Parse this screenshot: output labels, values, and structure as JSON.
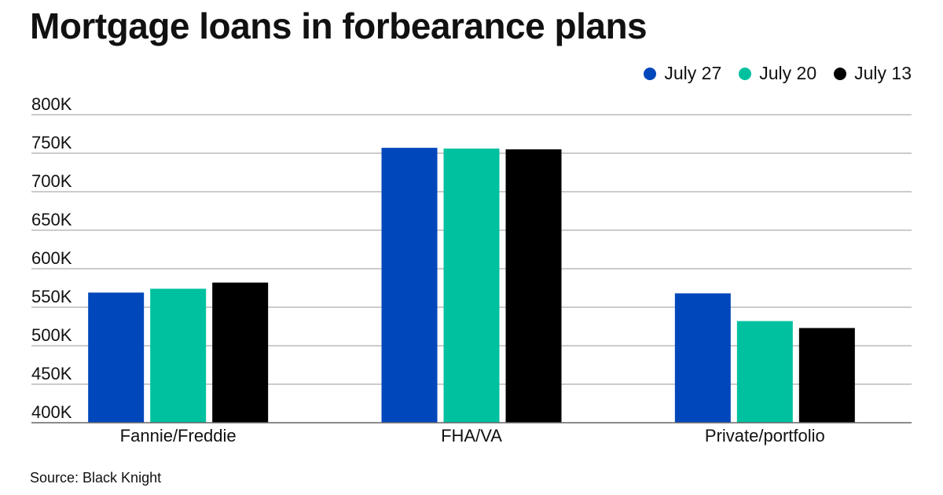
{
  "chart_data": {
    "type": "bar",
    "title": "Mortgage loans in forbearance plans",
    "categories": [
      "Fannie/Freddie",
      "FHA/VA",
      "Private/portfolio"
    ],
    "series": [
      {
        "name": "July 27",
        "color": "#0047BB",
        "values": [
          569000,
          757000,
          568000
        ]
      },
      {
        "name": "July 20",
        "color": "#00C19F",
        "values": [
          574000,
          756000,
          532000
        ]
      },
      {
        "name": "July 13",
        "color": "#000000",
        "values": [
          582000,
          755000,
          523000
        ]
      }
    ],
    "ylim": [
      400000,
      800000
    ],
    "yticks": [
      400000,
      450000,
      500000,
      550000,
      600000,
      650000,
      700000,
      750000,
      800000
    ],
    "ytick_labels": [
      "400K",
      "450K",
      "500K",
      "550K",
      "600K",
      "650K",
      "700K",
      "750K",
      "800K"
    ],
    "xlabel": "",
    "ylabel": "",
    "grid": true,
    "legend_position": "top-right",
    "source": "Source: Black Knight"
  }
}
